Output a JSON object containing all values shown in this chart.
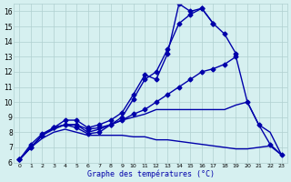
{
  "xlabel": "Graphe des températures (°C)",
  "background_color": "#d6f0f0",
  "line_color": "#0000aa",
  "grid_color": "#b0cfd0",
  "xlim": [
    -0.5,
    23.5
  ],
  "ylim": [
    6,
    16.5
  ],
  "xticks": [
    0,
    1,
    2,
    3,
    4,
    5,
    6,
    7,
    8,
    9,
    10,
    11,
    12,
    13,
    14,
    15,
    16,
    17,
    18,
    19,
    20,
    21,
    22,
    23
  ],
  "yticks": [
    6,
    7,
    8,
    9,
    10,
    11,
    12,
    13,
    14,
    15,
    16
  ],
  "series": [
    {
      "x": [
        0,
        1,
        2,
        3,
        4,
        5,
        6,
        7,
        8,
        9,
        10,
        11,
        12,
        13,
        14,
        15,
        16,
        17,
        18,
        19,
        20,
        21,
        22,
        23
      ],
      "y": [
        6.2,
        7.0,
        7.8,
        8.3,
        8.8,
        8.8,
        8.3,
        8.5,
        8.8,
        9.3,
        10.5,
        11.8,
        11.5,
        13.2,
        16.5,
        16.0,
        16.2,
        15.2,
        14.5,
        13.2,
        null,
        null,
        null,
        null
      ],
      "has_markers": true
    },
    {
      "x": [
        0,
        1,
        2,
        3,
        4,
        5,
        6,
        7,
        8,
        9,
        10,
        11,
        12,
        13,
        14,
        15,
        16,
        17,
        18,
        19,
        20,
        21,
        22,
        23
      ],
      "y": [
        6.2,
        7.0,
        7.8,
        8.3,
        8.5,
        8.5,
        8.2,
        8.3,
        8.5,
        9.0,
        10.2,
        11.5,
        12.0,
        13.5,
        15.2,
        15.8,
        16.2,
        15.2,
        null,
        null,
        null,
        null,
        null,
        null
      ],
      "has_markers": true
    },
    {
      "x": [
        0,
        1,
        2,
        3,
        4,
        5,
        6,
        7,
        8,
        9,
        10,
        11,
        12,
        13,
        14,
        15,
        16,
        17,
        18,
        19,
        20,
        21,
        22,
        23
      ],
      "y": [
        6.2,
        7.2,
        7.9,
        8.3,
        8.5,
        8.3,
        7.9,
        8.0,
        8.5,
        8.8,
        9.2,
        9.5,
        10.0,
        10.5,
        11.0,
        11.5,
        12.0,
        12.2,
        12.5,
        13.0,
        10.0,
        8.5,
        7.2,
        6.5
      ],
      "has_markers": true
    },
    {
      "x": [
        0,
        1,
        2,
        3,
        4,
        5,
        6,
        7,
        8,
        9,
        10,
        11,
        12,
        13,
        14,
        15,
        16,
        17,
        18,
        19,
        20,
        21,
        22,
        23
      ],
      "y": [
        6.2,
        7.0,
        7.8,
        8.2,
        8.5,
        8.5,
        8.0,
        8.2,
        8.5,
        8.8,
        9.0,
        9.2,
        9.5,
        9.5,
        9.5,
        9.5,
        9.5,
        9.5,
        9.5,
        9.8,
        10.0,
        8.5,
        8.0,
        6.5
      ],
      "has_markers": false
    },
    {
      "x": [
        0,
        1,
        2,
        3,
        4,
        5,
        6,
        7,
        8,
        9,
        10,
        11,
        12,
        13,
        14,
        15,
        16,
        17,
        18,
        19,
        20,
        21,
        22,
        23
      ],
      "y": [
        6.2,
        7.0,
        7.6,
        8.0,
        8.2,
        8.0,
        7.8,
        7.8,
        7.8,
        7.8,
        7.7,
        7.7,
        7.5,
        7.5,
        7.4,
        7.3,
        7.2,
        7.1,
        7.0,
        6.9,
        6.9,
        7.0,
        7.1,
        6.5
      ],
      "has_markers": false
    }
  ],
  "marker": "D",
  "markersize": 2.5,
  "linewidth": 1.0
}
